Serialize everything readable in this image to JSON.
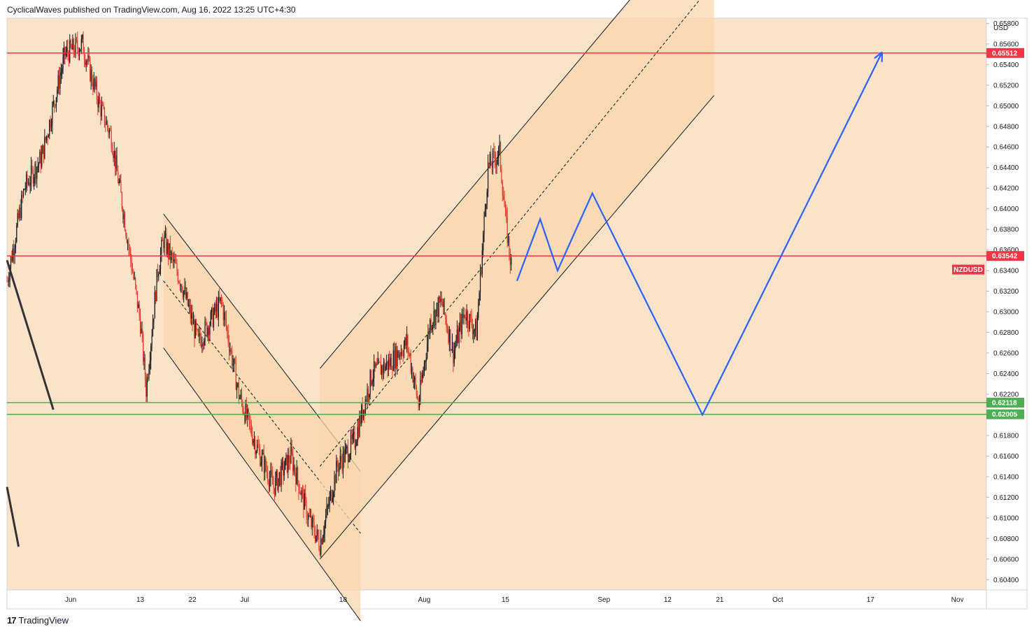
{
  "header": {
    "author_line": "CyclicalWaves published on TradingView.com, Aug 16, 2022 13:25 UTC+4:30"
  },
  "footer": {
    "brand": "TradingView",
    "logo_glyph": "17"
  },
  "colors": {
    "background": "#FBE3CA",
    "channel_fill": "#F9D6AE",
    "resistance": "#F23645",
    "support": "#4CAF50",
    "projection": "#2962FF",
    "up_candle": "#131722",
    "down_candle": "#E03A2B"
  },
  "chart_data": {
    "type": "candlestick",
    "symbol": "NZDUSD",
    "currency": "USD",
    "ylim": [
      0.603,
      0.6585
    ],
    "y_ticks": [
      "0.65800",
      "0.65600",
      "0.65400",
      "0.65200",
      "0.65000",
      "0.64800",
      "0.64600",
      "0.64400",
      "0.64200",
      "0.64000",
      "0.63800",
      "0.63600",
      "0.63400",
      "0.63200",
      "0.63000",
      "0.62800",
      "0.62600",
      "0.62400",
      "0.62200",
      "0.62000",
      "0.61800",
      "0.61600",
      "0.61400",
      "0.61200",
      "0.61000",
      "0.60800",
      "0.60600",
      "0.60400"
    ],
    "x_ticks": [
      {
        "label": "Jun",
        "date": "2022-06-01"
      },
      {
        "label": "13",
        "date": "2022-06-13"
      },
      {
        "label": "22",
        "date": "2022-06-22"
      },
      {
        "label": "Jul",
        "date": "2022-07-01"
      },
      {
        "label": "18",
        "date": "2022-07-18"
      },
      {
        "label": "Aug",
        "date": "2022-08-01"
      },
      {
        "label": "15",
        "date": "2022-08-15"
      },
      {
        "label": "Sep",
        "date": "2022-09-01"
      },
      {
        "label": "12",
        "date": "2022-09-12"
      },
      {
        "label": "21",
        "date": "2022-09-21"
      },
      {
        "label": "Oct",
        "date": "2022-10-01"
      },
      {
        "label": "17",
        "date": "2022-10-17"
      },
      {
        "label": "Nov",
        "date": "2022-11-01"
      }
    ],
    "price_path": [
      {
        "date": "2022-05-21",
        "price": 0.633
      },
      {
        "date": "2022-05-24",
        "price": 0.642
      },
      {
        "date": "2022-05-27",
        "price": 0.645
      },
      {
        "date": "2022-05-31",
        "price": 0.655
      },
      {
        "date": "2022-06-03",
        "price": 0.656
      },
      {
        "date": "2022-06-06",
        "price": 0.65
      },
      {
        "date": "2022-06-08",
        "price": 0.647
      },
      {
        "date": "2022-06-10",
        "price": 0.64
      },
      {
        "date": "2022-06-13",
        "price": 0.629
      },
      {
        "date": "2022-06-14",
        "price": 0.6225
      },
      {
        "date": "2022-06-16",
        "price": 0.634
      },
      {
        "date": "2022-06-17",
        "price": 0.637
      },
      {
        "date": "2022-06-20",
        "price": 0.633
      },
      {
        "date": "2022-06-23",
        "price": 0.627
      },
      {
        "date": "2022-06-27",
        "price": 0.631
      },
      {
        "date": "2022-06-30",
        "price": 0.622
      },
      {
        "date": "2022-07-03",
        "price": 0.617
      },
      {
        "date": "2022-07-06",
        "price": 0.613
      },
      {
        "date": "2022-07-09",
        "price": 0.616
      },
      {
        "date": "2022-07-12",
        "price": 0.61
      },
      {
        "date": "2022-07-14",
        "price": 0.6075
      },
      {
        "date": "2022-07-17",
        "price": 0.615
      },
      {
        "date": "2022-07-20",
        "price": 0.6175
      },
      {
        "date": "2022-07-23",
        "price": 0.624
      },
      {
        "date": "2022-07-26",
        "price": 0.625
      },
      {
        "date": "2022-07-29",
        "price": 0.627
      },
      {
        "date": "2022-07-31",
        "price": 0.621
      },
      {
        "date": "2022-08-02",
        "price": 0.629
      },
      {
        "date": "2022-08-04",
        "price": 0.631
      },
      {
        "date": "2022-08-06",
        "price": 0.626
      },
      {
        "date": "2022-08-08",
        "price": 0.63
      },
      {
        "date": "2022-08-10",
        "price": 0.628
      },
      {
        "date": "2022-08-12",
        "price": 0.644
      },
      {
        "date": "2022-08-14",
        "price": 0.6455
      },
      {
        "date": "2022-08-15",
        "price": 0.639
      },
      {
        "date": "2022-08-16",
        "price": 0.6345
      }
    ],
    "horizontal_levels": [
      {
        "price": 0.65512,
        "label": "0.65512",
        "role": "resistance"
      },
      {
        "price": 0.63542,
        "label": "0.63542",
        "role": "resistance"
      },
      {
        "price": 0.62118,
        "label": "0.62118",
        "role": "support"
      },
      {
        "price": 0.62005,
        "label": "0.62005",
        "role": "support"
      }
    ],
    "symbol_tag": "NZDUSD",
    "descending_channel": {
      "start_date": "2022-06-17",
      "end_date": "2022-07-21",
      "upper_start": 0.6395,
      "upper_end": 0.6145,
      "lower_start": 0.6265,
      "lower_end": 0.6,
      "mid_start": 0.633,
      "mid_end": 0.6085
    },
    "ascending_channel": {
      "start_date": "2022-07-14",
      "end_date": "2022-09-20",
      "upper_start": 0.6245,
      "upper_end": 0.67,
      "lower_start": 0.606,
      "lower_end": 0.651,
      "mid_start": 0.615,
      "mid_end": 0.662
    },
    "trendline_segments": [
      {
        "from": {
          "date": "2022-05-21",
          "price": 0.635
        },
        "to": {
          "date": "2022-05-29",
          "price": 0.6205
        }
      },
      {
        "from": {
          "date": "2022-05-21",
          "price": 0.613
        },
        "to": {
          "date": "2022-05-23",
          "price": 0.6072
        }
      }
    ],
    "projection_path": [
      {
        "date": "2022-08-17",
        "price": 0.633
      },
      {
        "date": "2022-08-21",
        "price": 0.639
      },
      {
        "date": "2022-08-24",
        "price": 0.634
      },
      {
        "date": "2022-08-30",
        "price": 0.6415
      },
      {
        "date": "2022-09-18",
        "price": 0.62
      },
      {
        "date": "2022-10-19",
        "price": 0.6552
      }
    ]
  }
}
